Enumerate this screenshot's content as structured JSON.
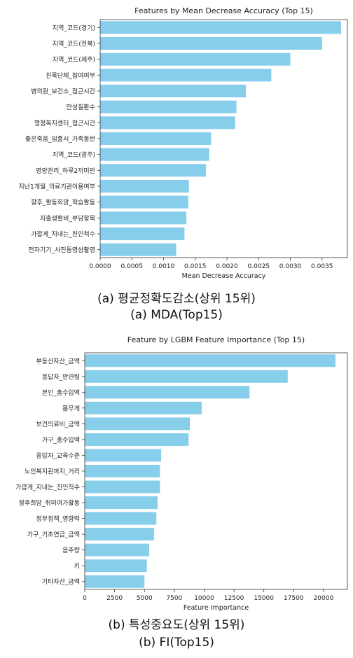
{
  "chart_data": [
    {
      "type": "bar",
      "orientation": "horizontal",
      "title": "Features by Mean Decrease Accuracy (Top 15)",
      "xlabel": "Mean Decrease Accuracy",
      "ylabel": "",
      "xlim": [
        0,
        0.0039
      ],
      "xticks": [
        "0.0000",
        "0.0005",
        "0.0010",
        "0.0015",
        "0.0020",
        "0.0025",
        "0.0030",
        "0.0035"
      ],
      "xtick_values": [
        0,
        0.0005,
        0.001,
        0.0015,
        0.002,
        0.0025,
        0.003,
        0.0035
      ],
      "bar_color": "#87CEEB",
      "grid": false,
      "categories": [
        "지역_코드(경기)",
        "지역_코드(전북)",
        "지역_코드(제주)",
        "친목단체_참여여부",
        "병의원_보건소_접근시간",
        "만성질환수",
        "행정복지센터_접근시간",
        "좋은죽음_임종시_가족동반",
        "지역_코드(광주)",
        "영양관리_하루2끼미만",
        "지난1개월_의료기관이용여부",
        "향후_활동희망_학습활동",
        "지출생활비_부담항목",
        "가깝게_지내는_친인척수",
        "전자기기_사진동영상촬영"
      ],
      "values": [
        0.0038,
        0.0035,
        0.003,
        0.0027,
        0.0023,
        0.00215,
        0.00213,
        0.00175,
        0.00172,
        0.00167,
        0.0014,
        0.00139,
        0.00136,
        0.00133,
        0.0012
      ]
    },
    {
      "type": "bar",
      "orientation": "horizontal",
      "title": "Feature by LGBM Feature Importance (Top 15)",
      "xlabel": "Feature Importance",
      "ylabel": "",
      "xlim": [
        0,
        22000
      ],
      "xticks": [
        "0",
        "2500",
        "5000",
        "7500",
        "10000",
        "12500",
        "15000",
        "17500",
        "20000"
      ],
      "xtick_values": [
        0,
        2500,
        5000,
        7500,
        10000,
        12500,
        15000,
        17500,
        20000
      ],
      "bar_color": "#87CEEB",
      "grid": false,
      "categories": [
        "부동산자산_금액",
        "응답자_만연령",
        "본인_총수입액",
        "몸무게",
        "보건의료비_금액",
        "가구_총수입액",
        "응답자_교육수준",
        "노인복지관까지_거리",
        "가깝게_지내는_친인척수",
        "향후희망_취미여가활동",
        "정부정책_영향력",
        "가구_기초연금_금액",
        "음주량",
        "키",
        "기타자산_금액"
      ],
      "values": [
        21000,
        17000,
        13800,
        9800,
        8800,
        8700,
        6400,
        6300,
        6300,
        6100,
        6000,
        5800,
        5400,
        5200,
        5000
      ]
    }
  ],
  "captions": {
    "a_line1": "(a) 평균정확도감소(상위 15위)",
    "a_line2": "(a) MDA(Top15)",
    "b_line1": "(b) 특성중요도(상위 15위)",
    "b_line2": "(b) FI(Top15)"
  }
}
